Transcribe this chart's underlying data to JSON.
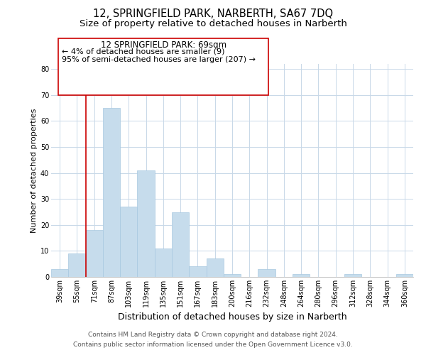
{
  "title": "12, SPRINGFIELD PARK, NARBERTH, SA67 7DQ",
  "subtitle": "Size of property relative to detached houses in Narberth",
  "xlabel": "Distribution of detached houses by size in Narberth",
  "ylabel": "Number of detached properties",
  "bar_labels": [
    "39sqm",
    "55sqm",
    "71sqm",
    "87sqm",
    "103sqm",
    "119sqm",
    "135sqm",
    "151sqm",
    "167sqm",
    "183sqm",
    "200sqm",
    "216sqm",
    "232sqm",
    "248sqm",
    "264sqm",
    "280sqm",
    "296sqm",
    "312sqm",
    "328sqm",
    "344sqm",
    "360sqm"
  ],
  "bar_values": [
    3,
    9,
    18,
    65,
    27,
    41,
    11,
    25,
    4,
    7,
    1,
    0,
    3,
    0,
    1,
    0,
    0,
    1,
    0,
    0,
    1
  ],
  "bar_color": "#c6dcec",
  "bar_edge_color": "#a8c8e0",
  "vline_color": "#cc0000",
  "ylim": [
    0,
    82
  ],
  "yticks": [
    0,
    10,
    20,
    30,
    40,
    50,
    60,
    70,
    80
  ],
  "annotation_title": "12 SPRINGFIELD PARK: 69sqm",
  "annotation_line1": "← 4% of detached houses are smaller (9)",
  "annotation_line2": "95% of semi-detached houses are larger (207) →",
  "annotation_box_color": "#ffffff",
  "annotation_border_color": "#cc0000",
  "footer_line1": "Contains HM Land Registry data © Crown copyright and database right 2024.",
  "footer_line2": "Contains public sector information licensed under the Open Government Licence v3.0.",
  "bg_color": "#ffffff",
  "grid_color": "#c8d8e8",
  "title_fontsize": 10.5,
  "subtitle_fontsize": 9.5,
  "xlabel_fontsize": 9,
  "ylabel_fontsize": 8,
  "tick_fontsize": 7,
  "footer_fontsize": 6.5,
  "annotation_title_fontsize": 8.5,
  "annotation_line_fontsize": 8
}
